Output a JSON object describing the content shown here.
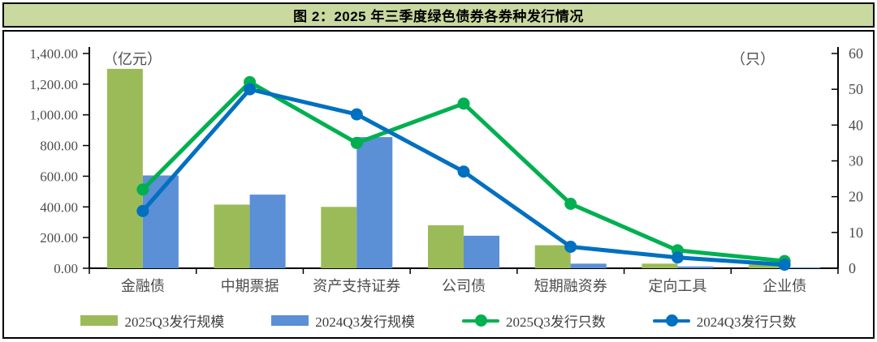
{
  "title": "图 2：2025 年三季度绿色债券各券种发行情况",
  "colors": {
    "title_bg": "#c9d9a0",
    "border": "#000000",
    "tick_text": "#4d4d4d",
    "bar_green": "#9bbb59",
    "bar_blue": "#5b8fd6",
    "line_green": "#00b050",
    "line_blue": "#0070c0"
  },
  "chart_data": {
    "type": "bar",
    "subtype": "bar+line combo, dual axis",
    "categories": [
      "金融债",
      "中期票据",
      "资产支持证券",
      "公司债",
      "短期融资券",
      "定向工具",
      "企业债"
    ],
    "series": [
      {
        "name": "2025Q3发行规模",
        "type": "bar",
        "axis": "left",
        "color": "#9bbb59",
        "values": [
          1300,
          415,
          400,
          280,
          150,
          30,
          25
        ]
      },
      {
        "name": "2024Q3发行规模",
        "type": "bar",
        "axis": "left",
        "color": "#5b8fd6",
        "values": [
          605,
          480,
          855,
          212,
          30,
          12,
          5
        ]
      },
      {
        "name": "2025Q3发行只数",
        "type": "line",
        "axis": "right",
        "color": "#00b050",
        "values": [
          22,
          52,
          35,
          46,
          18,
          5,
          2
        ]
      },
      {
        "name": "2024Q3发行只数",
        "type": "line",
        "axis": "right",
        "color": "#0070c0",
        "values": [
          16,
          50,
          43,
          27,
          6,
          3,
          1
        ]
      }
    ],
    "left_axis": {
      "label": "（亿元）",
      "min": 0,
      "max": 1400,
      "step": 200,
      "tick_labels": [
        "1,400.00",
        "1,200.00",
        "1,000.00",
        "800.00",
        "600.00",
        "400.00",
        "200.00",
        "0.00"
      ]
    },
    "right_axis": {
      "label": "（只）",
      "min": 0,
      "max": 60,
      "step": 10,
      "tick_labels": [
        "60",
        "50",
        "40",
        "30",
        "20",
        "10",
        "0"
      ]
    },
    "legend_position": "bottom",
    "grid": false
  }
}
